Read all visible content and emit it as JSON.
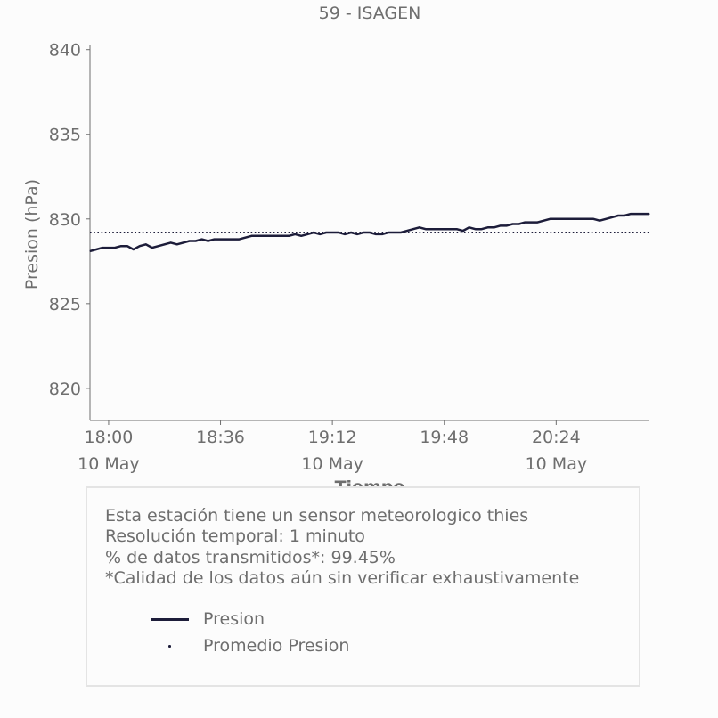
{
  "chart_data": {
    "type": "line",
    "title": "59 - ISAGEN",
    "xlabel": "Tiempo",
    "ylabel": "Presion (hPa)",
    "ylim": [
      818.1,
      840.3
    ],
    "yticks": [
      820,
      825,
      830,
      835,
      840
    ],
    "xlim_minutes": [
      1074,
      1254
    ],
    "xticks": [
      {
        "time": "18:00",
        "date": "10 May"
      },
      {
        "time": "18:36",
        "date": ""
      },
      {
        "time": "19:12",
        "date": "10 May"
      },
      {
        "time": "19:48",
        "date": ""
      },
      {
        "time": "20:24",
        "date": "10 May"
      }
    ],
    "series": [
      {
        "name": "Presion",
        "style": "solid",
        "color": "#1d1d3a",
        "x": [
          "17:54",
          "17:56",
          "17:58",
          "18:00",
          "18:02",
          "18:04",
          "18:06",
          "18:08",
          "18:10",
          "18:12",
          "18:14",
          "18:16",
          "18:18",
          "18:20",
          "18:22",
          "18:24",
          "18:26",
          "18:28",
          "18:30",
          "18:32",
          "18:34",
          "18:36",
          "18:38",
          "18:40",
          "18:42",
          "18:44",
          "18:46",
          "18:48",
          "18:50",
          "18:52",
          "18:54",
          "18:56",
          "18:58",
          "19:00",
          "19:02",
          "19:04",
          "19:06",
          "19:08",
          "19:10",
          "19:12",
          "19:14",
          "19:16",
          "19:18",
          "19:20",
          "19:22",
          "19:24",
          "19:26",
          "19:28",
          "19:30",
          "19:32",
          "19:34",
          "19:36",
          "19:38",
          "19:40",
          "19:42",
          "19:44",
          "19:46",
          "19:48",
          "19:50",
          "19:52",
          "19:54",
          "19:56",
          "19:58",
          "20:00",
          "20:02",
          "20:04",
          "20:06",
          "20:08",
          "20:10",
          "20:12",
          "20:14",
          "20:16",
          "20:18",
          "20:20",
          "20:22",
          "20:24",
          "20:26",
          "20:28",
          "20:30",
          "20:32",
          "20:34",
          "20:36",
          "20:38",
          "20:40",
          "20:42",
          "20:44",
          "20:46",
          "20:48",
          "20:50",
          "20:52",
          "20:54"
        ],
        "values": [
          828.1,
          828.2,
          828.3,
          828.3,
          828.3,
          828.4,
          828.4,
          828.2,
          828.4,
          828.5,
          828.3,
          828.4,
          828.5,
          828.6,
          828.5,
          828.6,
          828.7,
          828.7,
          828.8,
          828.7,
          828.8,
          828.8,
          828.8,
          828.8,
          828.8,
          828.9,
          829.0,
          829.0,
          829.0,
          829.0,
          829.0,
          829.0,
          829.0,
          829.1,
          829.0,
          829.1,
          829.2,
          829.1,
          829.2,
          829.2,
          829.2,
          829.1,
          829.2,
          829.1,
          829.2,
          829.2,
          829.1,
          829.1,
          829.2,
          829.2,
          829.2,
          829.3,
          829.4,
          829.5,
          829.4,
          829.4,
          829.4,
          829.4,
          829.4,
          829.4,
          829.3,
          829.5,
          829.4,
          829.4,
          829.5,
          829.5,
          829.6,
          829.6,
          829.7,
          829.7,
          829.8,
          829.8,
          829.8,
          829.9,
          830.0,
          830.0,
          830.0,
          830.0,
          830.0,
          830.0,
          830.0,
          830.0,
          829.9,
          830.0,
          830.1,
          830.2,
          830.2,
          830.3,
          830.3,
          830.3,
          830.3
        ]
      },
      {
        "name": "Promedio Presion",
        "style": "dotted",
        "color": "#1d1d3a",
        "constant": 829.2
      }
    ],
    "legend_placement": "below",
    "grid": false
  },
  "info": {
    "lines": [
      "Esta estación tiene un sensor meteorologico thies",
      "Resolución temporal: 1 minuto",
      "% de datos transmitidos*: 99.45%",
      "*Calidad de los datos aún sin verificar exhaustivamente"
    ]
  },
  "colors": {
    "line": "#1d1d3a",
    "axis": "#6e6e6e",
    "text": "#6e6e6e",
    "background": "#fcfcfc",
    "box_border": "#e4e4e4"
  }
}
